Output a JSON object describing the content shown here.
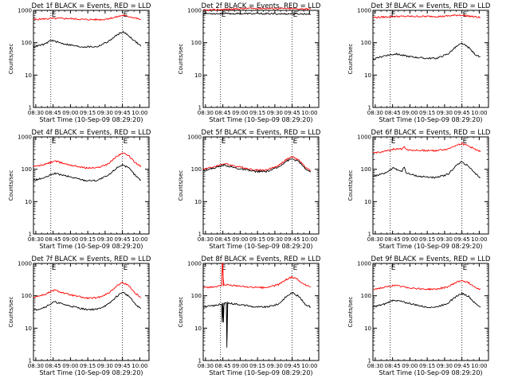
{
  "chart_data": [
    {
      "type": "line",
      "title": "Det 1f BLACK = Events, RED = LLD",
      "xlabel": "Start Time (10-Sep-09 08:29:20)",
      "ylabel": "Counts/sec",
      "yscale": "log",
      "ylim": [
        1,
        1000
      ],
      "x_ticks": [
        "08:30",
        "08:45",
        "09:00",
        "09:15",
        "09:30",
        "09:45",
        "10:00"
      ],
      "y_ticks": [
        "1",
        "10",
        "100",
        "1000"
      ],
      "x_range": [
        0,
        100
      ],
      "markers": [
        {
          "x": 15,
          "label": "E"
        },
        {
          "x": 77,
          "label": "E"
        }
      ],
      "dotted_lines": [
        15,
        77
      ],
      "series": [
        {
          "color": "#ff0000",
          "x": [
            0,
            15,
            30,
            45,
            60,
            70,
            77,
            85,
            93
          ],
          "values": [
            520,
            560,
            560,
            520,
            520,
            600,
            700,
            620,
            520
          ]
        },
        {
          "color": "#000000",
          "x": [
            0,
            10,
            15,
            25,
            40,
            55,
            65,
            72,
            77,
            82,
            88,
            93
          ],
          "values": [
            75,
            90,
            120,
            95,
            75,
            75,
            110,
            170,
            220,
            170,
            110,
            80
          ]
        }
      ]
    },
    {
      "type": "line",
      "title": "Det 2f BLACK = Events, RED = LLD",
      "xlabel": "Start Time (10-Sep-09 08:29:20)",
      "ylabel": "Counts/sec",
      "yscale": "log",
      "ylim": [
        1,
        1000
      ],
      "x_ticks": [
        "08:30",
        "08:45",
        "09:00",
        "09:15",
        "09:30",
        "09:45",
        "10:00"
      ],
      "y_ticks": [
        "1",
        "10",
        "100",
        "1000"
      ],
      "x_range": [
        0,
        100
      ],
      "markers": [
        {
          "x": 15,
          "label": "E"
        },
        {
          "x": 77,
          "label": "E"
        }
      ],
      "dotted_lines": [
        15,
        77
      ],
      "series": [
        {
          "color": "#ff0000",
          "x": [
            0,
            20,
            40,
            60,
            80,
            93
          ],
          "values": [
            1000,
            1080,
            1150,
            1150,
            1120,
            1100
          ]
        },
        {
          "color": "#000000",
          "x": [
            0,
            20,
            40,
            60,
            80,
            93
          ],
          "values": [
            800,
            790,
            790,
            780,
            780,
            770
          ]
        }
      ]
    },
    {
      "type": "line",
      "title": "Det 3f BLACK = Events, RED = LLD",
      "xlabel": "Start Time (10-Sep-09 08:29:20)",
      "ylabel": "Counts/sec",
      "yscale": "log",
      "ylim": [
        1,
        1000
      ],
      "x_ticks": [
        "08:30",
        "08:45",
        "09:00",
        "09:15",
        "09:30",
        "09:45",
        "10:00"
      ],
      "y_ticks": [
        "1",
        "10",
        "100",
        "1000"
      ],
      "x_range": [
        0,
        100
      ],
      "markers": [
        {
          "x": 15,
          "label": "E"
        },
        {
          "x": 77,
          "label": "E"
        }
      ],
      "dotted_lines": [
        15,
        77
      ],
      "series": [
        {
          "color": "#ff0000",
          "x": [
            0,
            20,
            40,
            60,
            75,
            85,
            93
          ],
          "values": [
            600,
            650,
            650,
            650,
            720,
            650,
            600
          ]
        },
        {
          "color": "#000000",
          "x": [
            0,
            10,
            20,
            30,
            45,
            55,
            65,
            72,
            77,
            83,
            88,
            93
          ],
          "values": [
            30,
            40,
            45,
            38,
            33,
            33,
            45,
            75,
            95,
            70,
            45,
            35
          ]
        }
      ]
    },
    {
      "type": "line",
      "title": "Det 4f BLACK = Events, RED = LLD",
      "xlabel": "Start Time (10-Sep-09 08:29:20)",
      "ylabel": "Counts/sec",
      "yscale": "log",
      "ylim": [
        1,
        1000
      ],
      "x_ticks": [
        "08:30",
        "08:45",
        "09:00",
        "09:15",
        "09:30",
        "09:45",
        "10:00"
      ],
      "y_ticks": [
        "1",
        "10",
        "100",
        "1000"
      ],
      "x_range": [
        0,
        100
      ],
      "markers": [
        {
          "x": 15,
          "label": "E"
        },
        {
          "x": 77,
          "label": "E"
        }
      ],
      "dotted_lines": [
        15,
        77
      ],
      "series": [
        {
          "color": "#ff0000",
          "x": [
            0,
            10,
            18,
            30,
            45,
            55,
            65,
            72,
            77,
            83,
            88,
            93
          ],
          "values": [
            120,
            140,
            180,
            140,
            110,
            110,
            150,
            250,
            320,
            250,
            160,
            120
          ]
        },
        {
          "color": "#000000",
          "x": [
            0,
            10,
            18,
            30,
            45,
            55,
            65,
            72,
            77,
            83,
            88,
            93
          ],
          "values": [
            45,
            55,
            75,
            60,
            45,
            45,
            65,
            110,
            140,
            105,
            65,
            45
          ]
        }
      ]
    },
    {
      "type": "line",
      "title": "Det 5f BLACK = Events, RED = LLD",
      "xlabel": "Start Time (10-Sep-09 08:29:20)",
      "ylabel": "Counts/sec",
      "yscale": "log",
      "ylim": [
        1,
        1000
      ],
      "x_ticks": [
        "08:30",
        "08:45",
        "09:00",
        "09:15",
        "09:30",
        "09:45",
        "10:00"
      ],
      "y_ticks": [
        "1",
        "10",
        "100",
        "1000"
      ],
      "x_range": [
        0,
        100
      ],
      "markers": [
        {
          "x": 15,
          "label": "E"
        },
        {
          "x": 77,
          "label": "E"
        }
      ],
      "dotted_lines": [
        15,
        77
      ],
      "series": [
        {
          "color": "#ff0000",
          "x": [
            0,
            10,
            18,
            30,
            45,
            55,
            65,
            72,
            77,
            83,
            88,
            93
          ],
          "values": [
            100,
            120,
            150,
            120,
            95,
            95,
            130,
            200,
            240,
            190,
            120,
            90
          ]
        },
        {
          "color": "#000000",
          "x": [
            0,
            10,
            18,
            30,
            45,
            55,
            65,
            72,
            77,
            83,
            88,
            93
          ],
          "values": [
            90,
            110,
            135,
            105,
            85,
            85,
            115,
            180,
            210,
            170,
            105,
            80
          ]
        }
      ]
    },
    {
      "type": "line",
      "title": "Det 6f BLACK = Events, RED = LLD",
      "xlabel": "Start Time (10-Sep-09 08:29:20)",
      "ylabel": "Counts/sec",
      "yscale": "log",
      "ylim": [
        1,
        1000
      ],
      "x_ticks": [
        "08:30",
        "08:45",
        "09:00",
        "09:15",
        "09:30",
        "09:45",
        "10:00"
      ],
      "y_ticks": [
        "1",
        "10",
        "100",
        "1000"
      ],
      "x_range": [
        0,
        100
      ],
      "markers": [
        {
          "x": 15,
          "label": "E"
        },
        {
          "x": 77,
          "label": "E"
        }
      ],
      "dotted_lines": [
        15,
        77
      ],
      "series": [
        {
          "color": "#ff0000",
          "x": [
            0,
            10,
            18,
            25,
            27,
            29,
            40,
            55,
            65,
            72,
            77,
            83,
            88,
            93
          ],
          "values": [
            320,
            350,
            420,
            420,
            520,
            400,
            380,
            380,
            420,
            560,
            620,
            520,
            420,
            360
          ]
        },
        {
          "color": "#000000",
          "x": [
            0,
            10,
            18,
            25,
            27,
            29,
            40,
            55,
            65,
            72,
            77,
            83,
            88,
            93
          ],
          "values": [
            60,
            75,
            110,
            85,
            120,
            75,
            60,
            55,
            70,
            130,
            170,
            120,
            75,
            55
          ]
        }
      ]
    },
    {
      "type": "line",
      "title": "Det 7f BLACK = Events, RED = LLD",
      "xlabel": "Start Time (10-Sep-09 08:29:20)",
      "ylabel": "Counts/sec",
      "yscale": "log",
      "ylim": [
        1,
        1000
      ],
      "x_ticks": [
        "08:30",
        "08:45",
        "09:00",
        "09:15",
        "09:30",
        "09:45",
        "10:00"
      ],
      "y_ticks": [
        "1",
        "10",
        "100",
        "1000"
      ],
      "x_range": [
        0,
        100
      ],
      "markers": [
        {
          "x": 15,
          "label": "E"
        },
        {
          "x": 77,
          "label": "E"
        }
      ],
      "dotted_lines": [
        15,
        77
      ],
      "series": [
        {
          "color": "#ff0000",
          "x": [
            0,
            10,
            18,
            30,
            45,
            55,
            65,
            72,
            77,
            83,
            88,
            93
          ],
          "values": [
            90,
            110,
            150,
            110,
            85,
            85,
            120,
            200,
            260,
            200,
            120,
            90
          ]
        },
        {
          "color": "#000000",
          "x": [
            0,
            10,
            18,
            30,
            45,
            55,
            65,
            72,
            77,
            83,
            88,
            93
          ],
          "values": [
            35,
            45,
            65,
            50,
            38,
            38,
            55,
            95,
            130,
            95,
            55,
            40
          ]
        }
      ]
    },
    {
      "type": "line",
      "title": "Det 8f BLACK = Events, RED = LLD",
      "xlabel": "Start Time (10-Sep-09 08:29:20)",
      "ylabel": "Counts/sec",
      "yscale": "log",
      "ylim": [
        1,
        1000
      ],
      "x_ticks": [
        "08:30",
        "08:45",
        "09:00",
        "09:15",
        "09:30",
        "09:45",
        "10:00"
      ],
      "y_ticks": [
        "1",
        "10",
        "100",
        "1000"
      ],
      "x_range": [
        0,
        100
      ],
      "markers": [
        {
          "x": 15,
          "label": "E"
        },
        {
          "x": 77,
          "label": "E"
        }
      ],
      "dotted_lines": [
        15,
        77
      ],
      "series": [
        {
          "color": "#ff0000",
          "x": [
            0,
            10,
            16,
            16.5,
            17,
            17.5,
            18,
            30,
            45,
            55,
            65,
            72,
            77,
            83,
            88,
            93
          ],
          "values": [
            180,
            190,
            200,
            1000,
            1000,
            200,
            220,
            200,
            180,
            180,
            220,
            320,
            380,
            300,
            220,
            180
          ]
        },
        {
          "color": "#000000",
          "x": [
            0,
            10,
            16,
            16.5,
            17,
            17.5,
            18,
            20,
            20.5,
            21,
            30,
            45,
            55,
            65,
            72,
            77,
            83,
            88,
            93
          ],
          "values": [
            45,
            50,
            55,
            15,
            60,
            15,
            60,
            60,
            2.5,
            60,
            55,
            45,
            45,
            55,
            95,
            125,
            95,
            55,
            45
          ]
        }
      ]
    },
    {
      "type": "line",
      "title": "Det 9f BLACK = Events, RED = LLD",
      "xlabel": "Start Time (10-Sep-09 08:29:20)",
      "ylabel": "Counts/sec",
      "yscale": "log",
      "ylim": [
        1,
        1000
      ],
      "x_ticks": [
        "08:30",
        "08:45",
        "09:00",
        "09:15",
        "09:30",
        "09:45",
        "10:00"
      ],
      "y_ticks": [
        "1",
        "10",
        "100",
        "1000"
      ],
      "x_range": [
        0,
        100
      ],
      "markers": [
        {
          "x": 15,
          "label": "E"
        },
        {
          "x": 77,
          "label": "E"
        }
      ],
      "dotted_lines": [
        15,
        77
      ],
      "series": [
        {
          "color": "#ff0000",
          "x": [
            0,
            10,
            18,
            30,
            45,
            55,
            65,
            72,
            77,
            83,
            88,
            93
          ],
          "values": [
            160,
            180,
            210,
            180,
            160,
            160,
            190,
            260,
            300,
            250,
            190,
            160
          ]
        },
        {
          "color": "#000000",
          "x": [
            0,
            10,
            18,
            30,
            45,
            55,
            65,
            72,
            77,
            83,
            88,
            93
          ],
          "values": [
            45,
            55,
            75,
            60,
            45,
            45,
            60,
            95,
            120,
            95,
            60,
            45
          ]
        }
      ]
    }
  ]
}
